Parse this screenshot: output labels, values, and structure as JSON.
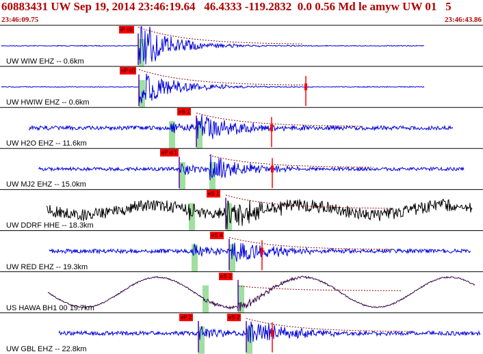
{
  "header": {
    "title": "60883431 UW Sep 19, 2014 23:46:19.64   46.4333 -119.2832  0.0 0.56 Md le amyw UW 01   5",
    "time_start": "23:46:09.75",
    "time_end": "23:46:43.86"
  },
  "colors": {
    "trace_blue": "#0000dd",
    "trace_black": "#000000",
    "trace_purple": "#330044",
    "pick_red": "#ff0000",
    "window_green": "#9fdf9f",
    "header_red": "#b00000"
  },
  "channels": [
    {
      "label": "UW WIW EHZ -- 0.6km",
      "color": "blue",
      "p_pick": "iP c0",
      "s_pick": ""
    },
    {
      "label": "UW HWIW EHZ -- 0.6km",
      "color": "blue",
      "p_pick": "eP c0",
      "s_pick": ""
    },
    {
      "label": "UW H2O EHZ -- 11.6km",
      "color": "blue",
      "p_pick": "",
      "s_pick": "eS 1"
    },
    {
      "label": "UW MJ2 EHZ -- 15.0km",
      "color": "blue",
      "p_pick": "eP d 1",
      "s_pick": ""
    },
    {
      "label": "UW DDRF HHE -- 18.3km",
      "color": "black",
      "p_pick": "",
      "s_pick": "eS 1"
    },
    {
      "label": "UW RED EHZ -- 19.3km",
      "color": "blue",
      "p_pick": "",
      "s_pick": "eS 4"
    },
    {
      "label": "US HAWA BH1 00 19.7km",
      "color": "purple",
      "p_pick": "",
      "s_pick": "eS 2"
    },
    {
      "label": "UW GBL EHZ -- 22.8km",
      "color": "blue",
      "p_pick": "eP 2",
      "s_pick": "eS 2"
    }
  ]
}
